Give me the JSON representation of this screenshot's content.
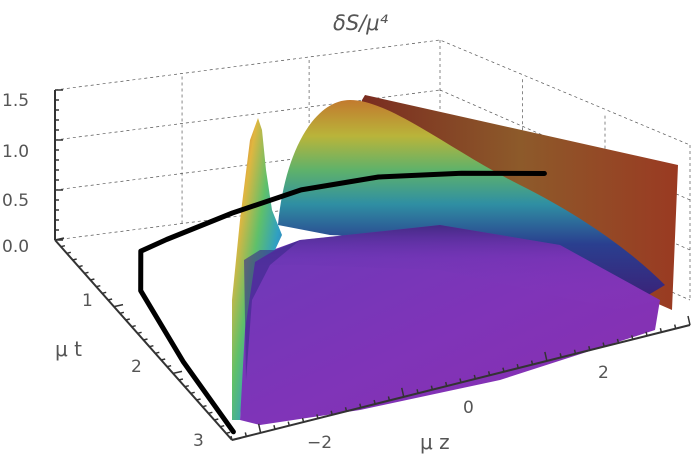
{
  "chart_data": {
    "type": "surface3d",
    "title": "δS/μ⁴",
    "xlabel": "μ z",
    "ylabel": "μ t",
    "zlabel": "",
    "x_ticks": [
      "−2",
      "0",
      "2"
    ],
    "y_ticks": [
      "1",
      "2",
      "3"
    ],
    "z_ticks": [
      "0.0",
      "0.5",
      "1.0",
      "1.5"
    ],
    "xlim": [
      -3.2,
      3.2
    ],
    "ylim": [
      0,
      3.1
    ],
    "zlim": [
      0,
      1.5
    ],
    "colormap": "rainbow",
    "grid": true,
    "curve": {
      "color": "#000000",
      "points": [
        [
          -3.1,
          3.0,
          0.0
        ],
        [
          -3.0,
          2.0,
          0.05
        ],
        [
          -2.8,
          1.0,
          0.1
        ],
        [
          -2.4,
          0.5,
          0.1
        ],
        [
          -2.0,
          0.45,
          0.12
        ],
        [
          -1.0,
          0.35,
          0.15
        ],
        [
          0.0,
          0.3,
          0.18
        ],
        [
          1.0,
          0.4,
          0.2
        ],
        [
          2.0,
          0.6,
          0.18
        ],
        [
          3.0,
          0.8,
          0.1
        ]
      ]
    }
  }
}
